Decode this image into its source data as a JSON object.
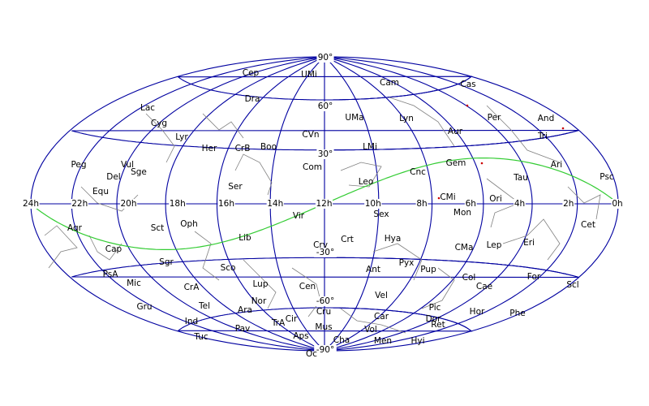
{
  "map": {
    "projection": "Hammer-Aitoff, all-sky, equatorial",
    "colors": {
      "grid": "#0000a0",
      "ecliptic": "#33cc33",
      "constellation_lines": "#808080",
      "stars": "#cc0000"
    },
    "dec_labels": [
      "90°",
      "60°",
      "30°",
      "-30°",
      "-60°",
      "-90°"
    ],
    "ra_labels": [
      "24h",
      "22h",
      "20h",
      "18h",
      "16h",
      "14h",
      "12h",
      "10h",
      "8h",
      "6h",
      "4h",
      "2h",
      "0h"
    ],
    "constellations": [
      "Cep",
      "UMi",
      "Dra",
      "Lac",
      "Cyg",
      "Lyr",
      "Her",
      "CrB",
      "Boo",
      "CVn",
      "Com",
      "Ser",
      "Peg",
      "Vul",
      "Del",
      "Sge",
      "Equ",
      "Cam",
      "Cas",
      "UMa",
      "Lyn",
      "Per",
      "And",
      "Aur",
      "Tri",
      "LMi",
      "Gem",
      "Ari",
      "Cnc",
      "Leo",
      "Tau",
      "Psc",
      "CMi",
      "Ori",
      "Mon",
      "Aqr",
      "Sct",
      "Oph",
      "Vir",
      "Lib",
      "Cap",
      "Crv",
      "Sgr",
      "Sco",
      "PsA",
      "Mic",
      "CrA",
      "Lup",
      "Cen",
      "Gru",
      "Tel",
      "Nor",
      "Ara",
      "Ind",
      "Cir",
      "TrA",
      "Pav",
      "Aps",
      "Tuc",
      "Oc",
      "Sex",
      "Crt",
      "Hya",
      "CMa",
      "Lep",
      "Eri",
      "Cet",
      "Pyx",
      "Ant",
      "Pup",
      "Col",
      "Cae",
      "For",
      "Scl",
      "Vel",
      "Pic",
      "Car",
      "Hor",
      "Phe",
      "Dor",
      "Ret",
      "Vol",
      "Men",
      "Hyi",
      "Cha",
      "Cru",
      "Mus"
    ]
  }
}
